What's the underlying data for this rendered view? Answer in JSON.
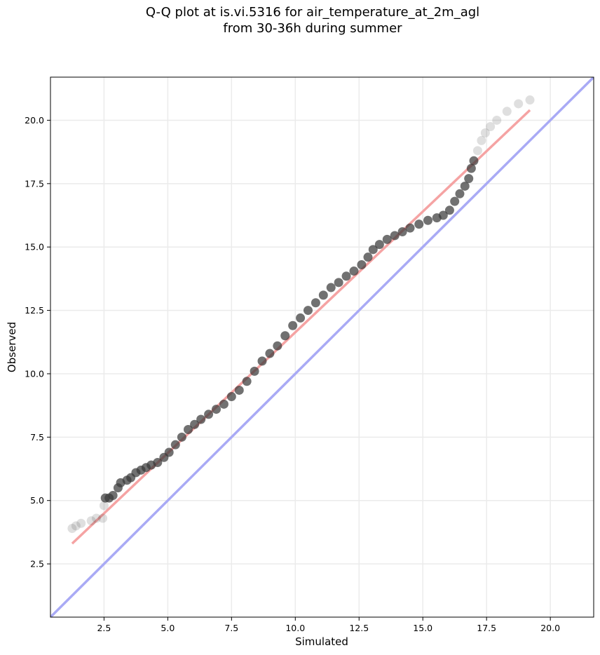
{
  "title": {
    "line1": "Q-Q plot at is.vi.5316 for air_temperature_at_2m_agl",
    "line2": "from 30-36h during summer"
  },
  "chart_data": {
    "type": "scatter",
    "xlabel": "Simulated",
    "ylabel": "Observed",
    "xlim": [
      0.4,
      21.7
    ],
    "ylim": [
      0.4,
      21.7
    ],
    "x_ticks": [
      2.5,
      5.0,
      7.5,
      10.0,
      12.5,
      15.0,
      17.5,
      20.0
    ],
    "x_tick_labels": [
      "2.5",
      "5.0",
      "7.5",
      "10.0",
      "12.5",
      "15.0",
      "17.5",
      "20.0"
    ],
    "y_ticks": [
      2.5,
      5.0,
      7.5,
      10.0,
      12.5,
      15.0,
      17.5,
      20.0
    ],
    "y_tick_labels": [
      "2.5",
      "5.0",
      "7.5",
      "10.0",
      "12.5",
      "15.0",
      "17.5",
      "20.0"
    ],
    "grid": true,
    "quantile_points": [
      [
        1.25,
        3.9
      ],
      [
        1.4,
        4.0
      ],
      [
        1.6,
        4.1
      ],
      [
        2.0,
        4.2
      ],
      [
        2.2,
        4.3
      ],
      [
        2.45,
        4.3
      ],
      [
        2.5,
        4.8
      ],
      [
        2.55,
        5.1
      ],
      [
        2.7,
        5.1
      ],
      [
        2.85,
        5.2
      ],
      [
        3.05,
        5.5
      ],
      [
        3.15,
        5.7
      ],
      [
        3.4,
        5.8
      ],
      [
        3.55,
        5.9
      ],
      [
        3.75,
        6.1
      ],
      [
        3.95,
        6.2
      ],
      [
        4.15,
        6.3
      ],
      [
        4.35,
        6.4
      ],
      [
        4.6,
        6.5
      ],
      [
        4.85,
        6.7
      ],
      [
        5.05,
        6.9
      ],
      [
        5.3,
        7.2
      ],
      [
        5.55,
        7.5
      ],
      [
        5.8,
        7.8
      ],
      [
        6.05,
        8.0
      ],
      [
        6.3,
        8.2
      ],
      [
        6.6,
        8.4
      ],
      [
        6.9,
        8.6
      ],
      [
        7.2,
        8.8
      ],
      [
        7.5,
        9.1
      ],
      [
        7.8,
        9.35
      ],
      [
        8.1,
        9.7
      ],
      [
        8.4,
        10.1
      ],
      [
        8.7,
        10.5
      ],
      [
        9.0,
        10.8
      ],
      [
        9.3,
        11.1
      ],
      [
        9.6,
        11.5
      ],
      [
        9.9,
        11.9
      ],
      [
        10.2,
        12.2
      ],
      [
        10.5,
        12.5
      ],
      [
        10.8,
        12.8
      ],
      [
        11.1,
        13.1
      ],
      [
        11.4,
        13.4
      ],
      [
        11.7,
        13.6
      ],
      [
        12.0,
        13.85
      ],
      [
        12.3,
        14.05
      ],
      [
        12.6,
        14.3
      ],
      [
        12.85,
        14.6
      ],
      [
        13.05,
        14.9
      ],
      [
        13.3,
        15.1
      ],
      [
        13.6,
        15.3
      ],
      [
        13.9,
        15.45
      ],
      [
        14.2,
        15.6
      ],
      [
        14.5,
        15.75
      ],
      [
        14.85,
        15.9
      ],
      [
        15.2,
        16.05
      ],
      [
        15.55,
        16.15
      ],
      [
        15.8,
        16.25
      ],
      [
        16.05,
        16.45
      ],
      [
        16.25,
        16.8
      ],
      [
        16.45,
        17.1
      ],
      [
        16.65,
        17.4
      ],
      [
        16.8,
        17.7
      ],
      [
        16.9,
        18.1
      ],
      [
        17.0,
        18.4
      ],
      [
        17.15,
        18.8
      ],
      [
        17.3,
        19.2
      ],
      [
        17.45,
        19.5
      ],
      [
        17.65,
        19.75
      ],
      [
        17.9,
        20.0
      ],
      [
        18.3,
        20.35
      ],
      [
        18.75,
        20.65
      ],
      [
        19.2,
        20.8
      ]
    ],
    "fit_line": {
      "x": [
        1.25,
        19.2
      ],
      "y": [
        3.3,
        20.4
      ]
    },
    "reference_line": {
      "x": [
        0.4,
        21.7
      ],
      "y": [
        0.4,
        21.7
      ]
    },
    "colors": {
      "points": "#3a3a3a",
      "fit_line": "#f5a3a3",
      "reference_line": "#a9aaf5",
      "grid": "#ebebeb"
    }
  }
}
